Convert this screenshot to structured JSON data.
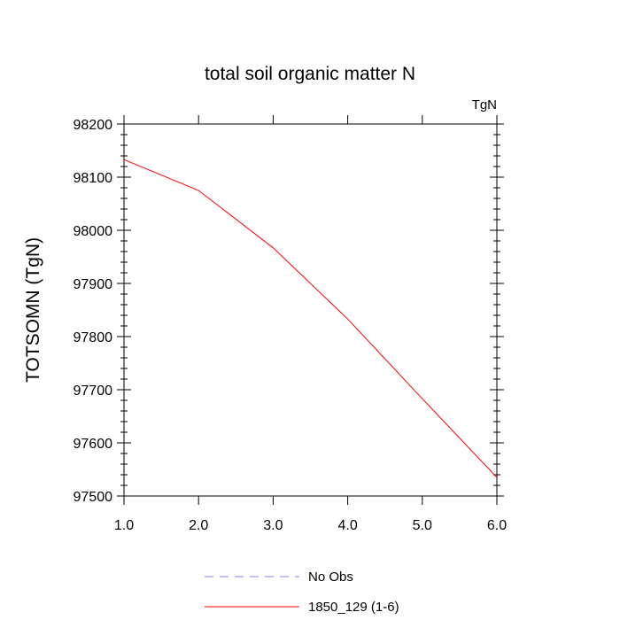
{
  "chart_data": {
    "type": "line",
    "title": "total soil organic matter N",
    "units_label": "TgN",
    "xlabel": "",
    "ylabel": "TOTSOMN  (TgN)",
    "xlim": [
      1.0,
      6.0
    ],
    "ylim": [
      97500,
      98200
    ],
    "x_ticks": [
      "1.0",
      "2.0",
      "3.0",
      "4.0",
      "5.0",
      "6.0"
    ],
    "y_ticks": [
      "97500",
      "97600",
      "97700",
      "97800",
      "97900",
      "98000",
      "98100",
      "98200"
    ],
    "series": [
      {
        "name": "1850_129 (1-6)",
        "color": "#ff0000",
        "style": "solid",
        "x": [
          1.0,
          2.0,
          3.0,
          4.0,
          5.0,
          6.0
        ],
        "y": [
          98133,
          98075,
          97967,
          97833,
          97683,
          97535
        ]
      }
    ],
    "legend": [
      {
        "label": "No Obs",
        "color": "#8080ff",
        "style": "dashed"
      },
      {
        "label": "1850_129 (1-6)",
        "color": "#ff0000",
        "style": "solid"
      }
    ]
  }
}
